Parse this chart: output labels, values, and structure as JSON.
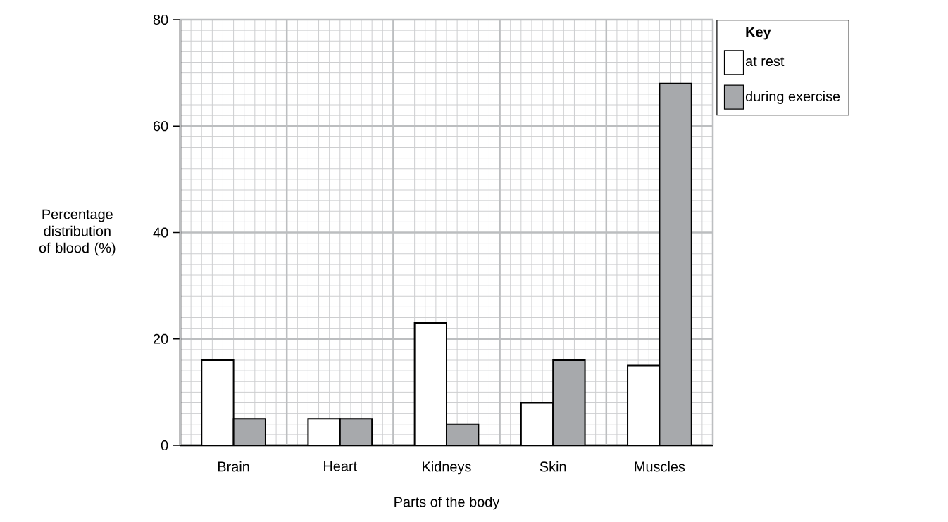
{
  "chart_data": {
    "type": "bar",
    "xlabel": "Parts of the body",
    "ylabel": "Percentage distribution of blood (%)",
    "legend_title": "Key",
    "categories": [
      "Brain",
      "Heart",
      "Kidneys",
      "Skin",
      "Muscles"
    ],
    "series": [
      {
        "name": "at rest",
        "color": "#ffffff",
        "values": [
          16,
          5,
          23,
          8,
          15
        ]
      },
      {
        "name": "during exercise",
        "color": "#a7a9ac",
        "values": [
          5,
          5,
          4,
          16,
          68
        ]
      }
    ],
    "ylim": [
      0,
      80
    ],
    "yticks": [
      0,
      20,
      40,
      60,
      80
    ],
    "grid": true,
    "legend": "top right"
  }
}
